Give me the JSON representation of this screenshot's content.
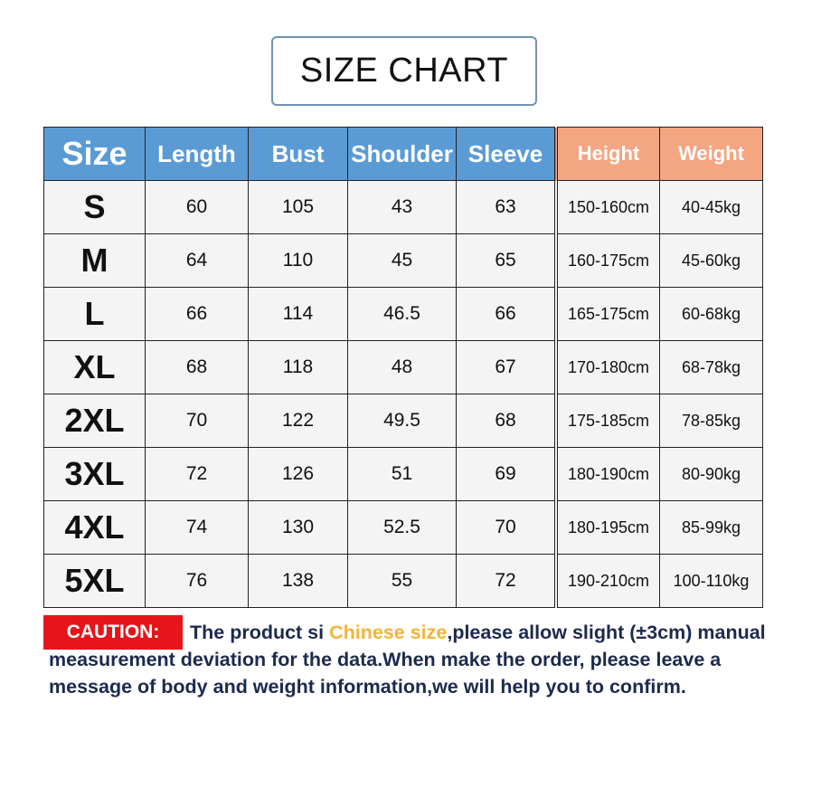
{
  "title": "SIZE CHART",
  "headers": [
    "Size",
    "Length",
    "Bust",
    "Shoulder",
    "Sleeve",
    "Height",
    "Weight"
  ],
  "colors": {
    "header_blue": "#5b9bd5",
    "header_orange": "#f4a582",
    "caution_red": "#e8141b",
    "highlight": "#f0b43c",
    "text_navy": "#1c2a4e"
  },
  "rows": [
    [
      "S",
      "60",
      "105",
      "43",
      "63",
      "150-160cm",
      "40-45kg"
    ],
    [
      "M",
      "64",
      "110",
      "45",
      "65",
      "160-175cm",
      "45-60kg"
    ],
    [
      "L",
      "66",
      "114",
      "46.5",
      "66",
      "165-175cm",
      "60-68kg"
    ],
    [
      "XL",
      "68",
      "118",
      "48",
      "67",
      "170-180cm",
      "68-78kg"
    ],
    [
      "2XL",
      "70",
      "122",
      "49.5",
      "68",
      "175-185cm",
      "78-85kg"
    ],
    [
      "3XL",
      "72",
      "126",
      "51",
      "69",
      "180-190cm",
      "80-90kg"
    ],
    [
      "4XL",
      "74",
      "130",
      "52.5",
      "70",
      "180-195cm",
      "85-99kg"
    ],
    [
      "5XL",
      "76",
      "138",
      "55",
      "72",
      "190-210cm",
      "100-110kg"
    ]
  ],
  "caution": {
    "label": "CAUTION:",
    "text_before": "The product si ",
    "highlight": "Chinese size",
    "text_after": ",please allow slight (±3cm) manual measurement deviation for the data.When make the order, please leave a message of body and weight information,we will help you to confirm."
  }
}
